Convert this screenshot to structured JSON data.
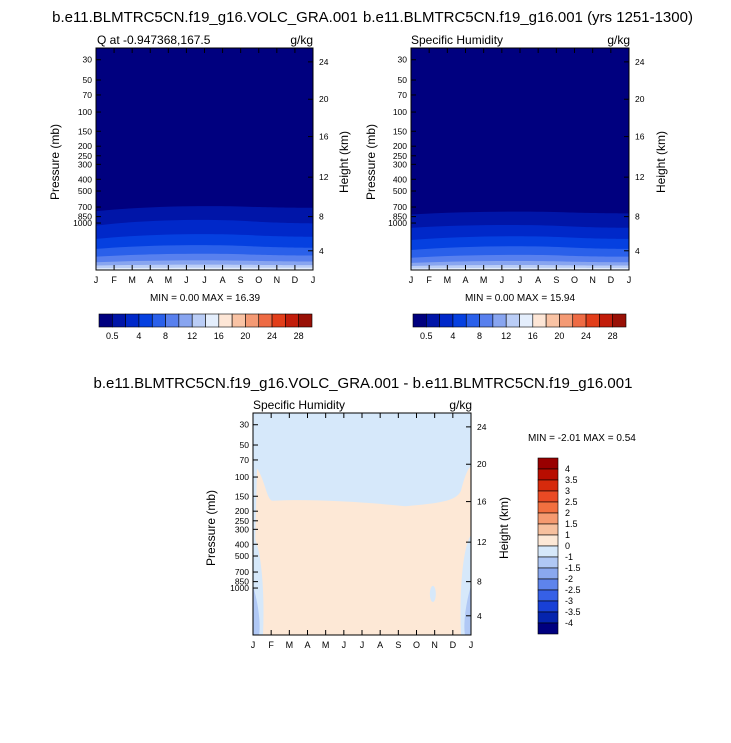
{
  "chart_data": [
    {
      "type": "heatmap",
      "title": "b.e11.BLMTRC5CN.f19_g16.VOLC_GRA.001",
      "left_label": "Q at -0.947368,167.5",
      "right_label": "g/kg",
      "ylabel": "Pressure (mb)",
      "ylabel_right": "Height (km)",
      "x_ticks": [
        "J",
        "F",
        "M",
        "A",
        "M",
        "J",
        "J",
        "A",
        "S",
        "O",
        "N",
        "D",
        "J"
      ],
      "y_ticks": [
        "30",
        "50",
        "70",
        "100",
        "150",
        "200",
        "250",
        "300",
        "400",
        "500",
        "700",
        "850",
        "1000"
      ],
      "y_ticks_right": [
        "24",
        "20",
        "16",
        "12",
        "8",
        "4"
      ],
      "stats": "MIN =   0.00 MAX =  16.39",
      "contour_levels": [
        0.5,
        1,
        2,
        4,
        6,
        8,
        10,
        12,
        14,
        16,
        18,
        20,
        22,
        24,
        26,
        28
      ],
      "colorbar_labels": [
        "0.5",
        "4",
        "8",
        "12",
        "16",
        "20",
        "24",
        "28"
      ],
      "ylim": [
        1000,
        30
      ]
    },
    {
      "type": "heatmap",
      "title": "b.e11.BLMTRC5CN.f19_g16.001 (yrs 1251-1300)",
      "left_label": "Specific Humidity",
      "right_label": "g/kg",
      "ylabel": "Pressure (mb)",
      "ylabel_right": "Height (km)",
      "x_ticks": [
        "J",
        "F",
        "M",
        "A",
        "M",
        "J",
        "J",
        "A",
        "S",
        "O",
        "N",
        "D",
        "J"
      ],
      "y_ticks": [
        "30",
        "50",
        "70",
        "100",
        "150",
        "200",
        "250",
        "300",
        "400",
        "500",
        "700",
        "850",
        "1000"
      ],
      "y_ticks_right": [
        "24",
        "20",
        "16",
        "12",
        "8",
        "4"
      ],
      "stats": "MIN =   0.00 MAX =  15.94",
      "contour_levels": [
        0.5,
        1,
        2,
        4,
        6,
        8,
        10,
        12,
        14,
        16,
        18,
        20,
        22,
        24,
        26,
        28
      ],
      "colorbar_labels": [
        "0.5",
        "4",
        "8",
        "12",
        "16",
        "20",
        "24",
        "28"
      ],
      "ylim": [
        1000,
        30
      ]
    },
    {
      "type": "heatmap",
      "title": "b.e11.BLMTRC5CN.f19_g16.VOLC_GRA.001 - b.e11.BLMTRC5CN.f19_g16.001",
      "left_label": "Specific Humidity",
      "right_label": "g/kg",
      "ylabel": "Pressure (mb)",
      "ylabel_right": "Height (km)",
      "x_ticks": [
        "J",
        "F",
        "M",
        "A",
        "M",
        "J",
        "J",
        "A",
        "S",
        "O",
        "N",
        "D",
        "J"
      ],
      "y_ticks": [
        "30",
        "50",
        "70",
        "100",
        "150",
        "200",
        "250",
        "300",
        "400",
        "500",
        "700",
        "850",
        "1000"
      ],
      "y_ticks_right": [
        "24",
        "20",
        "16",
        "12",
        "8",
        "4"
      ],
      "stats": "MIN =  -2.01 MAX =   0.54",
      "contour_levels": [
        4,
        3.5,
        3,
        2.5,
        2,
        1.5,
        1,
        0,
        -1,
        -1.5,
        -2,
        -2.5,
        -3,
        -3.5,
        -4
      ],
      "colorbar_labels": [
        "4",
        "3.5",
        "3",
        "2.5",
        "2",
        "1.5",
        "1",
        "0",
        "-1",
        "-1.5",
        "-2",
        "-2.5",
        "-3",
        "-3.5",
        "-4"
      ],
      "ylim": [
        1000,
        30
      ]
    }
  ],
  "colors": {
    "seq_scale": [
      "#00007f",
      "#0015a8",
      "#0028c9",
      "#0540e0",
      "#2a60ea",
      "#5880ee",
      "#88a5f0",
      "#bacdf6",
      "#e4eefc",
      "#fde6d6",
      "#f9c3a4",
      "#f49a74",
      "#ee6b44",
      "#e23e1a",
      "#c21d0a",
      "#991006",
      "#6e0000"
    ],
    "diff_scale": [
      "#990000",
      "#b80d00",
      "#d62a0c",
      "#ea4a24",
      "#f27040",
      "#f59a70",
      "#f7c09e",
      "#fde8d6",
      "#d6e8fa",
      "#b0c8f5",
      "#8aa8ef",
      "#5e84ec",
      "#3660e6",
      "#1840d6",
      "#0524ad",
      "#00007f"
    ],
    "diff_bg": "#fde8d6",
    "diff_upper": "#d6e8fa",
    "diff_negative": "#b0c8f5"
  }
}
